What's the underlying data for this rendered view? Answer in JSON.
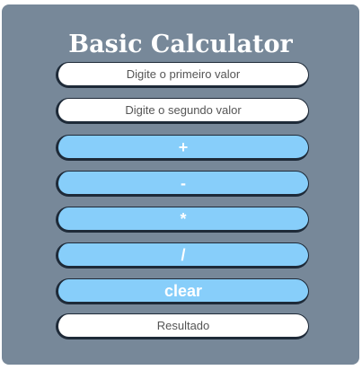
{
  "calculator": {
    "title": "Basic Calculator",
    "first_value": {
      "value": "",
      "placeholder": "Digite o primeiro valor"
    },
    "second_value": {
      "value": "",
      "placeholder": "Digite o segundo valor"
    },
    "buttons": {
      "add": "+",
      "subtract": "-",
      "multiply": "*",
      "divide": "/",
      "clear": "clear"
    },
    "result": "Resultado"
  },
  "colors": {
    "card_background": "#778899",
    "button_background": "#87cefa",
    "field_background": "#ffffff",
    "border": "#1e2a38"
  }
}
